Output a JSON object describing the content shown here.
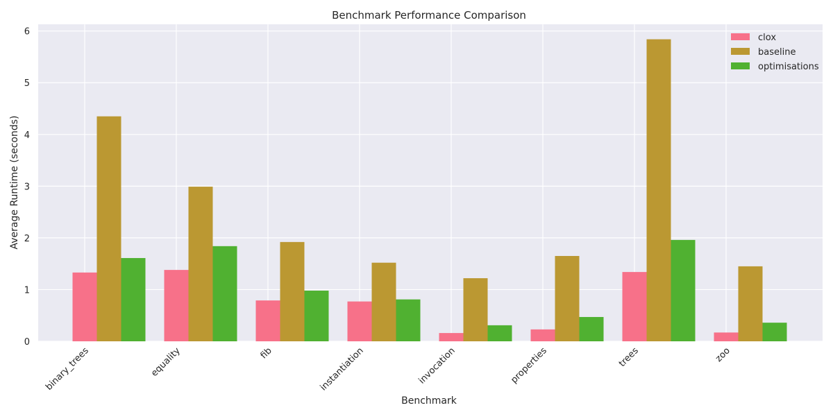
{
  "chart_data": {
    "type": "bar",
    "title": "Benchmark Performance Comparison",
    "xlabel": "Benchmark",
    "ylabel": "Average Runtime (seconds)",
    "ylim": [
      0,
      6.13
    ],
    "yticks": [
      "0",
      "1",
      "2",
      "3",
      "4",
      "5",
      "6"
    ],
    "grid": true,
    "legend_position": "top-right",
    "categories": [
      "binary_trees",
      "equality",
      "fib",
      "instantiation",
      "invocation",
      "properties",
      "trees",
      "zoo"
    ],
    "series": [
      {
        "name": "clox",
        "color": "#f77189",
        "values": [
          1.33,
          1.38,
          0.79,
          0.77,
          0.16,
          0.23,
          1.34,
          0.17
        ]
      },
      {
        "name": "baseline",
        "color": "#bb9832",
        "values": [
          4.35,
          2.99,
          1.92,
          1.52,
          1.22,
          1.65,
          5.84,
          1.45
        ]
      },
      {
        "name": "optimisations",
        "color": "#50b131",
        "values": [
          1.61,
          1.84,
          0.98,
          0.81,
          0.31,
          0.47,
          1.96,
          0.36
        ]
      }
    ],
    "background_color": "#eaeaf2"
  }
}
